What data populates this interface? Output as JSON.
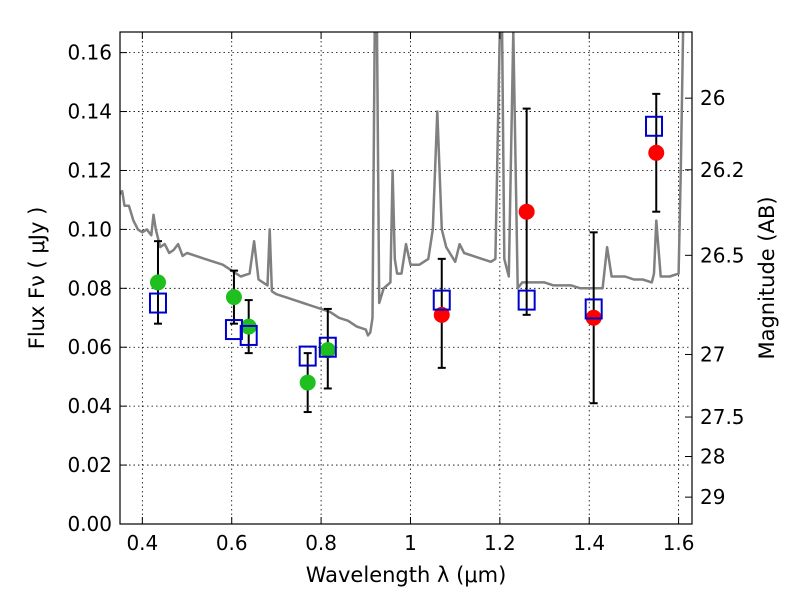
{
  "chart_data": {
    "type": "scatter",
    "title": "",
    "xlabel": "Wavelength  λ (μm)",
    "ylabel_left": "Flux  Fν  ( μJy )",
    "ylabel_right": "Magnitude (AB)",
    "xlim": [
      0.35,
      1.63
    ],
    "ylim": [
      0.0,
      0.167
    ],
    "x_ticks": [
      0.4,
      0.6,
      0.8,
      1.0,
      1.2,
      1.4,
      1.6
    ],
    "x_tick_labels": [
      "0.4",
      "0.6",
      "0.8",
      "1",
      "1.2",
      "1.4",
      "1.6"
    ],
    "y_ticks": [
      0.0,
      0.02,
      0.04,
      0.06,
      0.08,
      0.1,
      0.12,
      0.14,
      0.16
    ],
    "y_tick_labels": [
      "0.00",
      "0.02",
      "0.04",
      "0.06",
      "0.08",
      "0.10",
      "0.12",
      "0.14",
      "0.16"
    ],
    "right_ticks": [
      {
        "label": "26",
        "mag": 26.0
      },
      {
        "label": "26.2",
        "mag": 26.2
      },
      {
        "label": "26.5",
        "mag": 26.5
      },
      {
        "label": "27",
        "mag": 27.0
      },
      {
        "label": "27.5",
        "mag": 27.5
      },
      {
        "label": "28",
        "mag": 28.0
      },
      {
        "label": "29",
        "mag": 29.0
      }
    ],
    "grid": true,
    "colors": {
      "model": "#808080",
      "optical": "#1fbf1f",
      "infrared": "#ff0000",
      "model_fluxes": "#0000cc",
      "error_bars": "#000000"
    },
    "series": [
      {
        "kind": "line",
        "x": [
          0.35,
          0.355,
          0.36,
          0.37,
          0.38,
          0.39,
          0.4,
          0.41,
          0.42,
          0.425,
          0.43,
          0.44,
          0.45,
          0.46,
          0.47,
          0.48,
          0.49,
          0.5,
          0.52,
          0.54,
          0.56,
          0.58,
          0.6,
          0.62,
          0.64,
          0.65,
          0.66,
          0.68,
          0.685,
          0.69,
          0.7,
          0.72,
          0.74,
          0.76,
          0.78,
          0.8,
          0.82,
          0.84,
          0.86,
          0.88,
          0.9,
          0.905,
          0.91,
          0.915,
          0.92,
          0.925,
          0.93,
          0.94,
          0.955,
          0.96,
          0.965,
          0.97,
          0.98,
          0.99,
          1.0,
          1.02,
          1.04,
          1.05,
          1.06,
          1.07,
          1.08,
          1.1,
          1.11,
          1.12,
          1.14,
          1.16,
          1.18,
          1.19,
          1.2,
          1.205,
          1.21,
          1.22,
          1.23,
          1.24,
          1.25,
          1.26,
          1.28,
          1.3,
          1.32,
          1.34,
          1.36,
          1.38,
          1.4,
          1.42,
          1.43,
          1.44,
          1.45,
          1.46,
          1.48,
          1.5,
          1.52,
          1.54,
          1.545,
          1.55,
          1.56,
          1.58,
          1.6,
          1.605,
          1.61,
          1.615
        ],
        "y": [
          0.112,
          0.113,
          0.108,
          0.108,
          0.103,
          0.1,
          0.099,
          0.1,
          0.098,
          0.105,
          0.1,
          0.094,
          0.095,
          0.092,
          0.093,
          0.095,
          0.091,
          0.092,
          0.091,
          0.09,
          0.089,
          0.088,
          0.086,
          0.084,
          0.085,
          0.096,
          0.083,
          0.081,
          0.1,
          0.079,
          0.078,
          0.077,
          0.076,
          0.075,
          0.074,
          0.073,
          0.072,
          0.07,
          0.069,
          0.067,
          0.066,
          0.064,
          0.065,
          0.07,
          0.2,
          0.2,
          0.075,
          0.08,
          0.082,
          0.12,
          0.09,
          0.085,
          0.085,
          0.095,
          0.088,
          0.088,
          0.09,
          0.1,
          0.14,
          0.1,
          0.094,
          0.089,
          0.095,
          0.092,
          0.091,
          0.09,
          0.089,
          0.09,
          0.2,
          0.2,
          0.09,
          0.084,
          0.2,
          0.08,
          0.082,
          0.082,
          0.082,
          0.082,
          0.081,
          0.081,
          0.081,
          0.08,
          0.08,
          0.08,
          0.08,
          0.094,
          0.084,
          0.084,
          0.084,
          0.083,
          0.083,
          0.082,
          0.085,
          0.103,
          0.084,
          0.084,
          0.085,
          0.12,
          0.2,
          0.2
        ]
      },
      {
        "kind": "points",
        "marker": "circle",
        "color_key": "optical",
        "x": [
          0.435,
          0.605,
          0.638,
          0.77,
          0.815
        ],
        "y": [
          0.082,
          0.077,
          0.067,
          0.048,
          0.059
        ],
        "yerr_low": [
          0.068,
          0.068,
          0.058,
          0.038,
          0.046
        ],
        "yerr_high": [
          0.096,
          0.086,
          0.076,
          0.058,
          0.073
        ]
      },
      {
        "kind": "points",
        "marker": "circle",
        "color_key": "infrared",
        "x": [
          1.07,
          1.26,
          1.41,
          1.55
        ],
        "y": [
          0.071,
          0.106,
          0.07,
          0.126
        ],
        "yerr_low": [
          0.053,
          0.071,
          0.041,
          0.106
        ],
        "yerr_high": [
          0.09,
          0.141,
          0.099,
          0.146
        ]
      },
      {
        "kind": "points",
        "marker": "square",
        "color_key": "model_fluxes",
        "x": [
          0.435,
          0.605,
          0.638,
          0.77,
          0.815,
          1.07,
          1.26,
          1.41,
          1.545
        ],
        "y": [
          0.075,
          0.066,
          0.064,
          0.057,
          0.06,
          0.076,
          0.076,
          0.073,
          0.135
        ]
      }
    ]
  }
}
